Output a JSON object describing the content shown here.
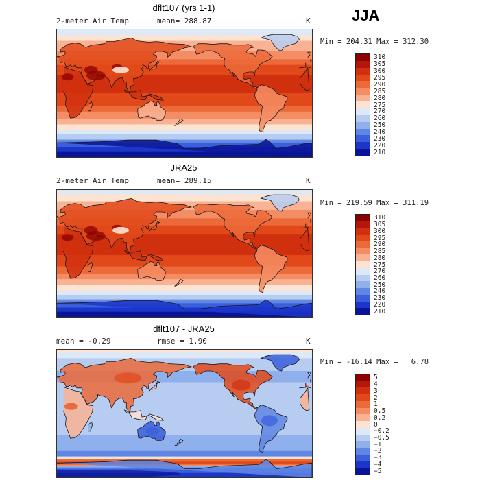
{
  "season": "JJA",
  "panels": [
    {
      "title": "dflt107 (yrs 1-1)",
      "variable": "2-meter Air Temp",
      "mean_label": "mean= 288.87",
      "unit": "K",
      "min_max": "Min = 204.31 Max = 312.30"
    },
    {
      "title": "JRA25",
      "variable": "2-meter Air Temp",
      "mean_label": "mean= 289.15",
      "unit": "K",
      "min_max": "Min = 219.59 Max = 311.19"
    },
    {
      "title": "dflt107 - JRA25",
      "variable": "mean =  -0.29",
      "mean_label": "rmse =   1.90",
      "unit": "K",
      "min_max": "Min = -16.14 Max =   6.78"
    }
  ],
  "chart_data": [
    {
      "type": "heatmap",
      "title": "dflt107 (yrs 1-1)",
      "variable": "2-meter Air Temp",
      "units": "K",
      "mean": 288.87,
      "min": 204.31,
      "max": 312.3,
      "colorbar_levels": [
        310,
        305,
        300,
        295,
        290,
        285,
        280,
        275,
        270,
        260,
        250,
        240,
        230,
        220,
        210
      ],
      "colorbar_labels": [
        "310",
        "305",
        "300",
        "295",
        "290",
        "285",
        "280",
        "275",
        "270",
        "260",
        "250",
        "240",
        "230",
        "220",
        "210"
      ],
      "colorbar_colors": [
        "#8b0000",
        "#b5160c",
        "#d1300f",
        "#e2491a",
        "#ec6a3a",
        "#f48d64",
        "#f9b394",
        "#fde3d1",
        "#dde9f7",
        "#b6cdf1",
        "#8fb0ec",
        "#5f86e3",
        "#3a5edc",
        "#1c36c9",
        "#0a1496"
      ]
    },
    {
      "type": "heatmap",
      "title": "JRA25",
      "variable": "2-meter Air Temp",
      "units": "K",
      "mean": 289.15,
      "min": 219.59,
      "max": 311.19,
      "colorbar_levels": [
        310,
        305,
        300,
        295,
        290,
        285,
        280,
        275,
        270,
        260,
        250,
        240,
        230,
        220,
        210
      ],
      "colorbar_labels": [
        "310",
        "305",
        "300",
        "295",
        "290",
        "285",
        "280",
        "275",
        "270",
        "260",
        "250",
        "240",
        "230",
        "220",
        "210"
      ],
      "colorbar_colors": [
        "#8b0000",
        "#b5160c",
        "#d1300f",
        "#e2491a",
        "#ec6a3a",
        "#f48d64",
        "#f9b394",
        "#fde3d1",
        "#dde9f7",
        "#b6cdf1",
        "#8fb0ec",
        "#5f86e3",
        "#3a5edc",
        "#1c36c9",
        "#0a1496"
      ]
    },
    {
      "type": "heatmap",
      "title": "dflt107 - JRA25",
      "units": "K",
      "mean": -0.29,
      "rmse": 1.9,
      "min": -16.14,
      "max": 6.78,
      "colorbar_levels": [
        5,
        4,
        3,
        2,
        1,
        0.5,
        0.2,
        0,
        -0.2,
        -0.5,
        -1,
        -2,
        -3,
        -4,
        -5
      ],
      "colorbar_labels": [
        "5",
        "4",
        "3",
        "2",
        "1",
        "0.5",
        "0.2",
        "0",
        "−0.2",
        "−0.5",
        "−1",
        "−2",
        "−3",
        "−4",
        "−5"
      ],
      "colorbar_colors": [
        "#8b0000",
        "#b5160c",
        "#d1300f",
        "#e2491a",
        "#ec6a3a",
        "#f48d64",
        "#f9b394",
        "#fde3d1",
        "#dde9f7",
        "#b6cdf1",
        "#8fb0ec",
        "#5f86e3",
        "#3a5edc",
        "#1c36c9",
        "#0a1496"
      ]
    }
  ]
}
